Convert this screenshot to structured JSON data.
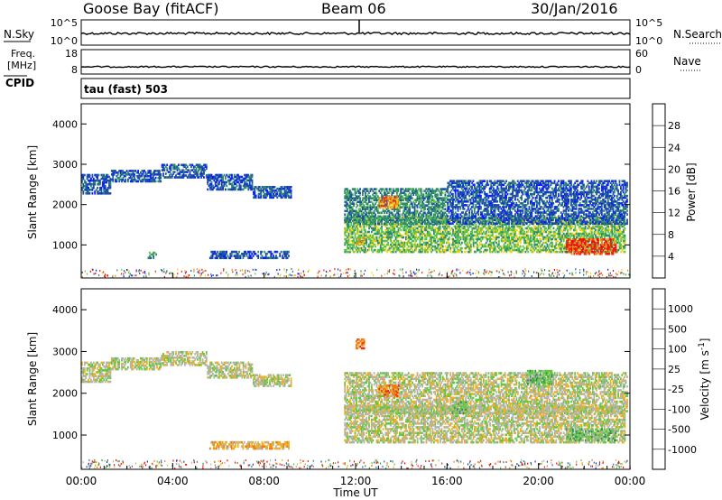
{
  "header": {
    "station": "Goose Bay (fitACF)",
    "beam": "Beam 06",
    "date": "30/Jan/2016"
  },
  "noise_panel": {
    "left_label": "N.Sky",
    "left_ticks": [
      "10^5",
      "10^0"
    ],
    "right_label": "N.Search",
    "right_ticks": [
      "10^5",
      "10^0"
    ]
  },
  "freq_panel": {
    "left_label_1": "Freq.",
    "left_label_2": "[MHz]",
    "left_ticks": [
      "18",
      "8"
    ],
    "right_label": "Nave",
    "right_ticks": [
      "60",
      "0"
    ],
    "cpid_label": "CPID"
  },
  "cpid_panel": {
    "text": "tau (fast) 503"
  },
  "time_axis": {
    "label": "Time UT",
    "ticks": [
      "00:00",
      "04:00",
      "08:00",
      "12:00",
      "16:00",
      "20:00",
      "00:00"
    ]
  },
  "chart_data": [
    {
      "type": "heatmap",
      "name": "power",
      "xlabel": "Time UT",
      "ylabel": "Slant Range [km]",
      "xlim": [
        0,
        24
      ],
      "ylim": [
        180,
        4500
      ],
      "yticks": [
        1000,
        2000,
        3000,
        4000
      ],
      "colorbar": {
        "label": "Power [dB]",
        "ticks": [
          "4",
          "8",
          "12",
          "16",
          "20",
          "24",
          "28"
        ],
        "colors": [
          "#0a1eff",
          "#1f4fa6",
          "#2e8a6e",
          "#5cc04a",
          "#f2d21a",
          "#f08a14",
          "#e82a10",
          "#ff0000"
        ]
      },
      "regions": [
        {
          "t0": 0.0,
          "t1": 1.3,
          "r0": 2250,
          "r1": 2750,
          "level": 1
        },
        {
          "t0": 1.3,
          "t1": 3.5,
          "r0": 2550,
          "r1": 2850,
          "level": 1
        },
        {
          "t0": 3.5,
          "t1": 5.5,
          "r0": 2650,
          "r1": 3000,
          "level": 1
        },
        {
          "t0": 5.5,
          "t1": 7.5,
          "r0": 2350,
          "r1": 2750,
          "level": 1
        },
        {
          "t0": 7.5,
          "t1": 9.2,
          "r0": 2150,
          "r1": 2450,
          "level": 1
        },
        {
          "t0": 5.6,
          "t1": 9.1,
          "r0": 650,
          "r1": 850,
          "level": 1
        },
        {
          "t0": 2.9,
          "t1": 3.3,
          "r0": 650,
          "r1": 820,
          "level": 2
        },
        {
          "t0": 11.5,
          "t1": 23.8,
          "r0": 800,
          "r1": 1700,
          "level": 3
        },
        {
          "t0": 11.5,
          "t1": 16.0,
          "r0": 1500,
          "r1": 2400,
          "level": 2
        },
        {
          "t0": 16.0,
          "t1": 23.9,
          "r0": 1500,
          "r1": 2600,
          "level": 1
        },
        {
          "t0": 21.2,
          "t1": 23.4,
          "r0": 750,
          "r1": 1150,
          "level": 6
        },
        {
          "t0": 13.0,
          "t1": 13.9,
          "r0": 1900,
          "r1": 2200,
          "level": 5
        },
        {
          "t0": 12.0,
          "t1": 12.4,
          "r0": 1000,
          "r1": 1200,
          "level": 4
        }
      ]
    },
    {
      "type": "heatmap",
      "name": "velocity",
      "xlabel": "Time UT",
      "ylabel": "Slant Range [km]",
      "xlim": [
        0,
        24
      ],
      "ylim": [
        180,
        4500
      ],
      "yticks": [
        1000,
        2000,
        3000,
        4000
      ],
      "colorbar": {
        "label": "Velocity [m s^-1]",
        "ticks": [
          "1000",
          "500",
          "100",
          "25",
          "-25",
          "-100",
          "-500",
          "-1000"
        ],
        "colors": [
          "#1e3ca8",
          "#2a6bb8",
          "#2f8f5a",
          "#60c840",
          "#b4b4a8",
          "#f0b020",
          "#f07a14",
          "#e83010",
          "#ff0000"
        ]
      },
      "regions": [
        {
          "t0": 0.0,
          "t1": 1.3,
          "r0": 2250,
          "r1": 2750,
          "level": 4
        },
        {
          "t0": 1.3,
          "t1": 3.5,
          "r0": 2550,
          "r1": 2850,
          "level": 4
        },
        {
          "t0": 3.5,
          "t1": 5.5,
          "r0": 2650,
          "r1": 3000,
          "level": 4
        },
        {
          "t0": 5.5,
          "t1": 7.5,
          "r0": 2350,
          "r1": 2750,
          "level": 4
        },
        {
          "t0": 7.5,
          "t1": 9.2,
          "r0": 2150,
          "r1": 2450,
          "level": 4
        },
        {
          "t0": 5.6,
          "t1": 9.1,
          "r0": 650,
          "r1": 850,
          "level": 5
        },
        {
          "t0": 11.5,
          "t1": 23.8,
          "r0": 800,
          "r1": 1700,
          "level": 4
        },
        {
          "t0": 11.5,
          "t1": 23.9,
          "r0": 1500,
          "r1": 2500,
          "level": 4
        },
        {
          "t0": 13.0,
          "t1": 13.9,
          "r0": 1900,
          "r1": 2200,
          "level": 6
        },
        {
          "t0": 12.0,
          "t1": 12.4,
          "r0": 3050,
          "r1": 3300,
          "level": 6
        },
        {
          "t0": 16.2,
          "t1": 16.9,
          "r0": 1500,
          "r1": 1800,
          "level": 3
        },
        {
          "t0": 19.5,
          "t1": 20.6,
          "r0": 2200,
          "r1": 2550,
          "level": 3
        },
        {
          "t0": 21.2,
          "t1": 23.4,
          "r0": 850,
          "r1": 1150,
          "level": 3
        }
      ]
    }
  ]
}
